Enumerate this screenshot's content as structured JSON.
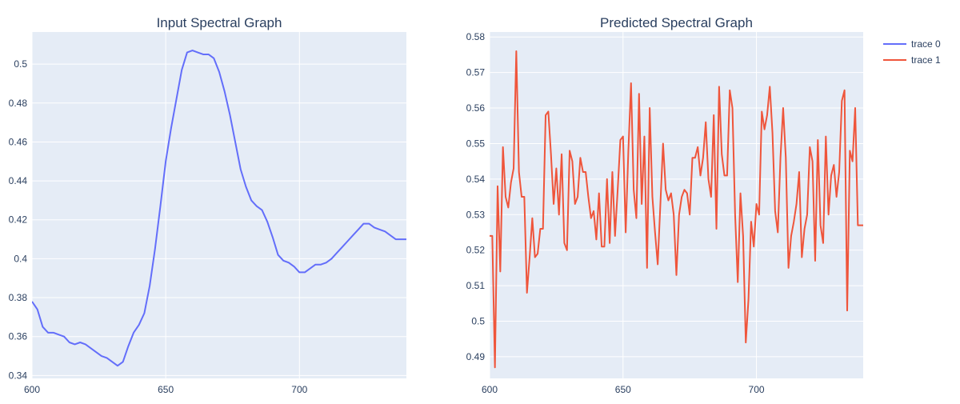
{
  "colors": {
    "plot_bg": "#e5ecf6",
    "grid": "#ffffff",
    "text": "#2a3f5f",
    "trace0": "#636efa",
    "trace1": "#ef553b"
  },
  "legend": {
    "placement": "top-right, outside plot",
    "items": [
      "trace 0",
      "trace 1"
    ]
  },
  "chart_data": [
    {
      "type": "line",
      "title": "Input Spectral Graph",
      "xlabel": "",
      "ylabel": "",
      "xlim": [
        600,
        740
      ],
      "ylim": [
        0.3385,
        0.5165
      ],
      "xticks": [
        600,
        650,
        700
      ],
      "xtick_labels": [
        "600",
        "650",
        "700"
      ],
      "yticks": [
        0.34,
        0.36,
        0.38,
        0.4,
        0.42,
        0.44,
        0.46,
        0.48,
        0.5
      ],
      "ytick_labels": [
        "0.34",
        "0.36",
        "0.38",
        "0.4",
        "0.42",
        "0.44",
        "0.46",
        "0.48",
        "0.5"
      ],
      "grid": true,
      "series": [
        {
          "name": "trace 0",
          "color": "#636efa",
          "x": [
            600,
            602,
            604,
            606,
            608,
            610,
            612,
            614,
            616,
            618,
            620,
            622,
            624,
            626,
            628,
            630,
            632,
            634,
            636,
            638,
            640,
            642,
            644,
            646,
            648,
            650,
            652,
            654,
            656,
            658,
            660,
            662,
            664,
            666,
            668,
            670,
            672,
            674,
            676,
            678,
            680,
            682,
            684,
            686,
            688,
            690,
            692,
            694,
            696,
            698,
            700,
            702,
            704,
            706,
            708,
            710,
            712,
            714,
            716,
            718,
            720,
            722,
            724,
            726,
            728,
            730,
            732,
            734,
            736,
            738,
            740
          ],
          "values": [
            0.378,
            0.374,
            0.365,
            0.362,
            0.362,
            0.361,
            0.36,
            0.357,
            0.356,
            0.357,
            0.356,
            0.354,
            0.352,
            0.35,
            0.349,
            0.347,
            0.345,
            0.347,
            0.355,
            0.362,
            0.366,
            0.372,
            0.386,
            0.405,
            0.427,
            0.45,
            0.467,
            0.482,
            0.497,
            0.506,
            0.507,
            0.506,
            0.505,
            0.505,
            0.503,
            0.496,
            0.486,
            0.474,
            0.46,
            0.446,
            0.437,
            0.43,
            0.427,
            0.425,
            0.419,
            0.411,
            0.402,
            0.399,
            0.398,
            0.396,
            0.393,
            0.393,
            0.395,
            0.397,
            0.397,
            0.398,
            0.4,
            0.403,
            0.406,
            0.409,
            0.412,
            0.415,
            0.418,
            0.418,
            0.416,
            0.415,
            0.414,
            0.412,
            0.41,
            0.41,
            0.41
          ]
        }
      ]
    },
    {
      "type": "line",
      "title": "Predicted Spectral Graph",
      "xlabel": "",
      "ylabel": "",
      "xlim": [
        600,
        740
      ],
      "ylim": [
        0.4839,
        0.5814
      ],
      "xticks": [
        600,
        650,
        700
      ],
      "xtick_labels": [
        "600",
        "650",
        "700"
      ],
      "yticks": [
        0.49,
        0.5,
        0.51,
        0.52,
        0.53,
        0.54,
        0.55,
        0.56,
        0.57,
        0.58
      ],
      "ytick_labels": [
        "0.49",
        "0.5",
        "0.51",
        "0.52",
        "0.53",
        "0.54",
        "0.55",
        "0.56",
        "0.57",
        "0.58"
      ],
      "grid": true,
      "series": [
        {
          "name": "trace 1",
          "color": "#ef553b",
          "x": [
            600,
            601,
            602,
            603,
            604,
            605,
            606,
            607,
            608,
            609,
            610,
            611,
            612,
            613,
            614,
            615,
            616,
            617,
            618,
            619,
            620,
            621,
            622,
            623,
            624,
            625,
            626,
            627,
            628,
            629,
            630,
            631,
            632,
            633,
            634,
            635,
            636,
            637,
            638,
            639,
            640,
            641,
            642,
            643,
            644,
            645,
            646,
            647,
            648,
            649,
            650,
            651,
            652,
            653,
            654,
            655,
            656,
            657,
            658,
            659,
            660,
            661,
            662,
            663,
            664,
            665,
            666,
            667,
            668,
            669,
            670,
            671,
            672,
            673,
            674,
            675,
            676,
            677,
            678,
            679,
            680,
            681,
            682,
            683,
            684,
            685,
            686,
            687,
            688,
            689,
            690,
            691,
            692,
            693,
            694,
            695,
            696,
            697,
            698,
            699,
            700,
            701,
            702,
            703,
            704,
            705,
            706,
            707,
            708,
            709,
            710,
            711,
            712,
            713,
            714,
            715,
            716,
            717,
            718,
            719,
            720,
            721,
            722,
            723,
            724,
            725,
            726,
            727,
            728,
            729,
            730,
            731,
            732,
            733,
            734,
            735,
            736,
            737,
            738,
            739,
            740
          ],
          "values": [
            0.524,
            0.524,
            0.487,
            0.538,
            0.514,
            0.549,
            0.535,
            0.532,
            0.539,
            0.543,
            0.576,
            0.542,
            0.535,
            0.535,
            0.508,
            0.518,
            0.529,
            0.518,
            0.519,
            0.526,
            0.526,
            0.558,
            0.559,
            0.547,
            0.533,
            0.543,
            0.53,
            0.547,
            0.522,
            0.52,
            0.548,
            0.545,
            0.533,
            0.535,
            0.546,
            0.542,
            0.542,
            0.535,
            0.529,
            0.531,
            0.523,
            0.536,
            0.521,
            0.521,
            0.54,
            0.522,
            0.542,
            0.524,
            0.537,
            0.551,
            0.552,
            0.525,
            0.548,
            0.567,
            0.537,
            0.529,
            0.564,
            0.533,
            0.552,
            0.515,
            0.56,
            0.535,
            0.525,
            0.516,
            0.533,
            0.55,
            0.537,
            0.534,
            0.536,
            0.53,
            0.513,
            0.53,
            0.535,
            0.537,
            0.536,
            0.53,
            0.546,
            0.546,
            0.549,
            0.541,
            0.546,
            0.556,
            0.54,
            0.535,
            0.558,
            0.526,
            0.566,
            0.547,
            0.541,
            0.541,
            0.565,
            0.56,
            0.53,
            0.511,
            0.536,
            0.524,
            0.494,
            0.506,
            0.528,
            0.521,
            0.533,
            0.53,
            0.559,
            0.554,
            0.558,
            0.566,
            0.553,
            0.531,
            0.525,
            0.546,
            0.56,
            0.546,
            0.515,
            0.524,
            0.528,
            0.533,
            0.542,
            0.518,
            0.526,
            0.53,
            0.549,
            0.545,
            0.517,
            0.551,
            0.527,
            0.522,
            0.552,
            0.53,
            0.541,
            0.544,
            0.535,
            0.542,
            0.562,
            0.565,
            0.503,
            0.548,
            0.545,
            0.56,
            0.527,
            0.527,
            0.527
          ]
        }
      ]
    }
  ]
}
